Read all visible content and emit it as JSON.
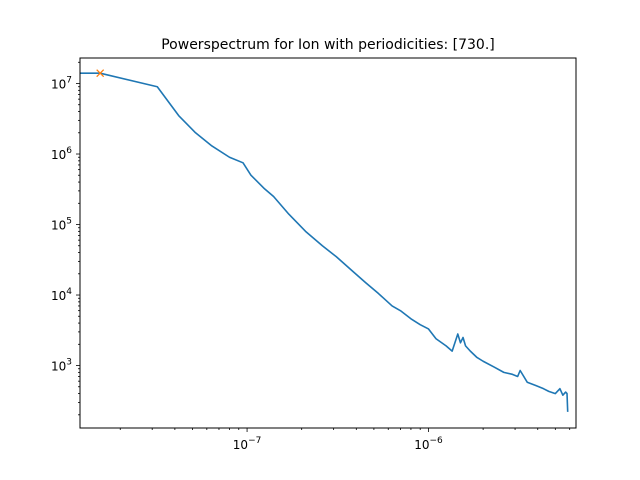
{
  "chart_data": {
    "type": "line",
    "title": "Powerspectrum for Ion with periodicities: [730.]",
    "xlabel": "",
    "ylabel": "",
    "xscale": "log",
    "yscale": "log",
    "xlim": [
      1.2e-08,
      6.5e-06
    ],
    "ylim": [
      130,
      23000000
    ],
    "grid": false,
    "legend": "none",
    "x_tick_labels": [
      {
        "value": 1e-07,
        "base": "10",
        "exp": "−7"
      },
      {
        "value": 1e-06,
        "base": "10",
        "exp": "−6"
      }
    ],
    "y_tick_labels": [
      {
        "value": 1000,
        "base": "10",
        "exp": "3"
      },
      {
        "value": 10000,
        "base": "10",
        "exp": "4"
      },
      {
        "value": 100000,
        "base": "10",
        "exp": "5"
      },
      {
        "value": 1000000,
        "base": "10",
        "exp": "6"
      },
      {
        "value": 10000000,
        "base": "10",
        "exp": "7"
      }
    ],
    "series": [
      {
        "color": "#1f77b4",
        "x": [
          1.2e-08,
          1.55e-08,
          3.2e-08,
          4.2e-08,
          5.2e-08,
          6.4e-08,
          8e-08,
          9.5e-08,
          1.05e-07,
          1.25e-07,
          1.4e-07,
          1.7e-07,
          2.1e-07,
          2.6e-07,
          3.1e-07,
          3.8e-07,
          4.5e-07,
          5.3e-07,
          6.3e-07,
          7e-07,
          8e-07,
          9e-07,
          1e-06,
          1.1e-06,
          1.25e-06,
          1.35e-06,
          1.45e-06,
          1.5e-06,
          1.55e-06,
          1.6e-06,
          1.7e-06,
          1.85e-06,
          2e-06,
          2.3e-06,
          2.6e-06,
          2.9e-06,
          3.1e-06,
          3.2e-06,
          3.5e-06,
          3.9e-06,
          4.3e-06,
          4.6e-06,
          5e-06,
          5.3e-06,
          5.5e-06,
          5.7e-06,
          5.8e-06,
          5.85e-06
        ],
        "y": [
          14000000,
          14000000,
          9000000,
          3500000,
          2000000,
          1300000,
          900000,
          750000,
          500000,
          320000,
          250000,
          140000,
          80000,
          50000,
          35000,
          22000,
          15000,
          10500,
          7000,
          6000,
          4600,
          3800,
          3300,
          2400,
          1900,
          1600,
          2800,
          2100,
          2500,
          1900,
          1600,
          1300,
          1150,
          950,
          800,
          750,
          700,
          850,
          580,
          520,
          470,
          430,
          400,
          470,
          380,
          420,
          400,
          220
        ]
      }
    ],
    "marker": {
      "x": 1.55e-08,
      "y": 14000000,
      "symbol": "x",
      "color": "#ff7f0e"
    }
  }
}
